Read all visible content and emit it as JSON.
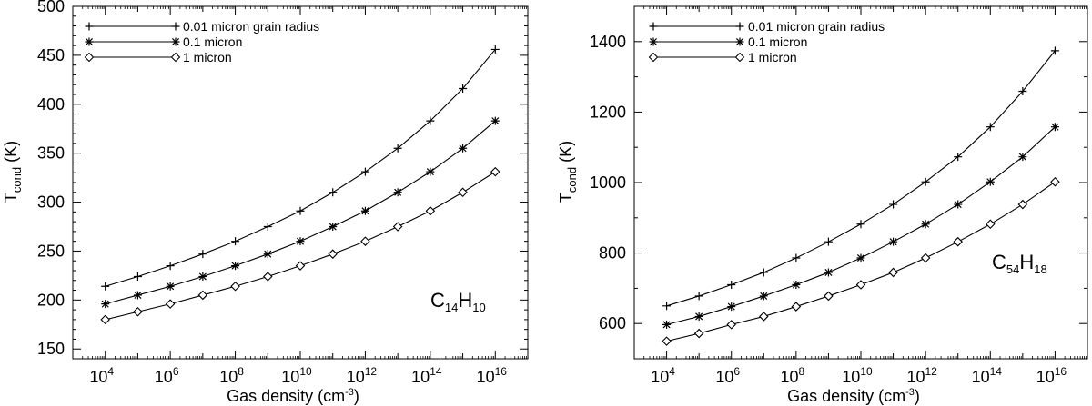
{
  "chart_data": [
    {
      "type": "line",
      "x_scale": "log",
      "x": [
        10000.0,
        100000.0,
        1000000.0,
        10000000.0,
        100000000.0,
        1000000000.0,
        10000000000.0,
        100000000000.0,
        1000000000000.0,
        10000000000000.0,
        100000000000000.0,
        1000000000000000.0,
        1e+16
      ],
      "xlim": [
        1000.0,
        1e+17
      ],
      "ylim": [
        140,
        500
      ],
      "y_ticks": [
        150,
        200,
        250,
        300,
        350,
        400,
        450,
        500
      ],
      "x_ticks_exp": [
        4,
        6,
        8,
        10,
        12,
        14,
        16
      ],
      "xlabel": "Gas density (cm",
      "xlabel_sup": "-3",
      "xlabel_end": ")",
      "ylabel_main": "T",
      "ylabel_sub": "cond",
      "ylabel_end": " (K)",
      "molecule": [
        {
          "t": "C",
          "s": "14"
        },
        {
          "t": "H",
          "s": "10"
        }
      ],
      "series": [
        {
          "name": "0.01 micron grain radius",
          "marker": "plus",
          "values": [
            214,
            224,
            235,
            247,
            260,
            275,
            291,
            310,
            331,
            355,
            383,
            416,
            456
          ]
        },
        {
          "name": "0.1 micron",
          "marker": "asterisk",
          "values": [
            196,
            205,
            214,
            224,
            235,
            247,
            260,
            275,
            291,
            310,
            331,
            355,
            383
          ]
        },
        {
          "name": "1 micron",
          "marker": "diamond",
          "values": [
            180,
            188,
            196,
            205,
            214,
            224,
            235,
            247,
            260,
            275,
            291,
            310,
            331
          ]
        }
      ]
    },
    {
      "type": "line",
      "x_scale": "log",
      "x": [
        10000.0,
        100000.0,
        1000000.0,
        10000000.0,
        100000000.0,
        1000000000.0,
        10000000000.0,
        100000000000.0,
        1000000000000.0,
        10000000000000.0,
        100000000000000.0,
        1000000000000000.0,
        1e+16
      ],
      "xlim": [
        1000.0,
        1e+17
      ],
      "ylim": [
        500,
        1500
      ],
      "y_ticks": [
        600,
        800,
        1000,
        1200,
        1400
      ],
      "x_ticks_exp": [
        4,
        6,
        8,
        10,
        12,
        14,
        16
      ],
      "xlabel": "Gas density (cm",
      "xlabel_sup": "-3",
      "xlabel_end": ")",
      "ylabel_main": "T",
      "ylabel_sub": "cond",
      "ylabel_end": " (K)",
      "molecule": [
        {
          "t": "C",
          "s": "54"
        },
        {
          "t": "H",
          "s": "18"
        }
      ],
      "series": [
        {
          "name": "0.01 micron grain radius",
          "marker": "plus",
          "values": [
            650,
            678,
            710,
            745,
            786,
            832,
            882,
            938,
            1002,
            1073,
            1158,
            1259,
            1374
          ]
        },
        {
          "name": "0.1 micron",
          "marker": "asterisk",
          "values": [
            597,
            620,
            648,
            678,
            710,
            745,
            786,
            832,
            882,
            938,
            1002,
            1073,
            1158
          ]
        },
        {
          "name": "1 micron",
          "marker": "diamond",
          "values": [
            550,
            572,
            597,
            620,
            648,
            678,
            710,
            745,
            786,
            832,
            882,
            938,
            1002
          ]
        }
      ]
    }
  ]
}
